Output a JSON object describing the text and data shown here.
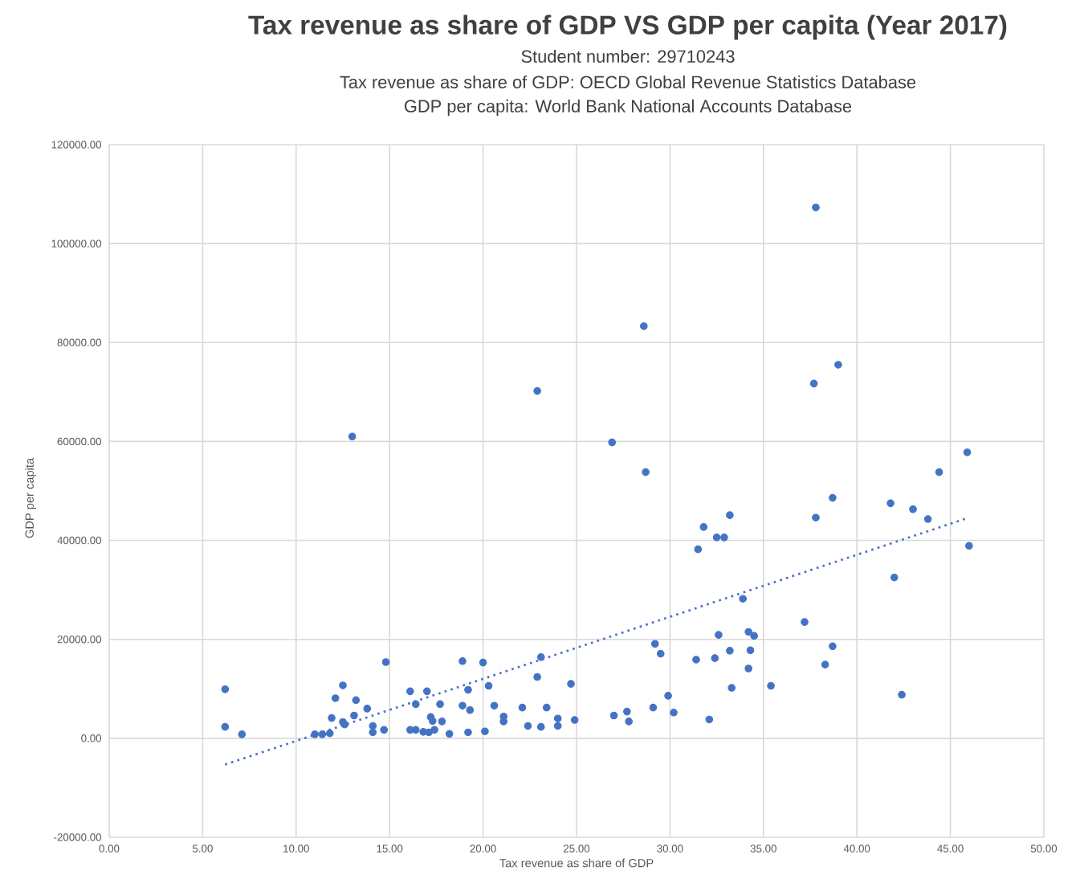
{
  "chart_data": {
    "type": "scatter",
    "title": "Tax revenue as share of GDP VS GDP per capita (Year 2017)",
    "subtitle": "Student number: 29710243",
    "annotations": [
      "Tax revenue as share of GDP: OECD Global Revenue Statistics Database",
      "GDP per capita: World Bank National Accounts Database"
    ],
    "xlabel": "Tax revenue as share of GDP",
    "ylabel": "GDP per capita",
    "xlim": [
      0,
      50
    ],
    "ylim": [
      -20000,
      120000
    ],
    "xticks": [
      {
        "value": 0,
        "label": "0.00"
      },
      {
        "value": 5,
        "label": "5.00"
      },
      {
        "value": 10,
        "label": "10.00"
      },
      {
        "value": 15,
        "label": "15.00"
      },
      {
        "value": 20,
        "label": "20.00"
      },
      {
        "value": 25,
        "label": "25.00"
      },
      {
        "value": 30,
        "label": "30.00"
      },
      {
        "value": 35,
        "label": "35.00"
      },
      {
        "value": 40,
        "label": "40.00"
      },
      {
        "value": 45,
        "label": "45.00"
      },
      {
        "value": 50,
        "label": "50.00"
      }
    ],
    "yticks": [
      {
        "value": -20000,
        "label": "-20000.00"
      },
      {
        "value": 0,
        "label": "0.00"
      },
      {
        "value": 20000,
        "label": "20000.00"
      },
      {
        "value": 40000,
        "label": "40000.00"
      },
      {
        "value": 60000,
        "label": "60000.00"
      },
      {
        "value": 80000,
        "label": "80000.00"
      },
      {
        "value": 100000,
        "label": "100000.00"
      },
      {
        "value": 120000,
        "label": "120000.00"
      }
    ],
    "grid": true,
    "marker": "circle",
    "series": [
      {
        "color": "#4472c4",
        "x": [
          6.2,
          6.2,
          7.1,
          11.0,
          11.4,
          11.8,
          11.9,
          12.1,
          12.5,
          12.5,
          12.6,
          13.2,
          13.1,
          13.8,
          14.1,
          14.1,
          14.7,
          14.8,
          16.1,
          16.1,
          16.4,
          16.4,
          16.8,
          17.0,
          17.1,
          17.2,
          17.3,
          17.4,
          17.7,
          17.8,
          18.2,
          18.9,
          19.2,
          18.9,
          19.3,
          19.2,
          20.0,
          20.1,
          20.3,
          20.6,
          21.1,
          21.1,
          22.1,
          22.4,
          22.9,
          23.1,
          23.1,
          23.4,
          24.0,
          24.0,
          24.7,
          24.9,
          27.0,
          27.7,
          27.8,
          29.1,
          29.2,
          29.5,
          29.9,
          30.2,
          31.4,
          32.1,
          32.4,
          32.6,
          33.2,
          33.3,
          33.9,
          34.2,
          34.5,
          34.3,
          34.2,
          35.4,
          37.2,
          37.8,
          38.7,
          38.3,
          38.7,
          41.8,
          42.0,
          42.4,
          43.0,
          43.8,
          44.4,
          45.9,
          46.0,
          31.5,
          31.8,
          32.5,
          32.9,
          33.2,
          26.9,
          28.7,
          28.6,
          22.9,
          37.7,
          39.0,
          13.0,
          37.8
        ],
        "values": [
          9900,
          2300,
          800,
          800,
          800,
          1000,
          4100,
          8100,
          10700,
          3300,
          2800,
          7700,
          4600,
          6000,
          2500,
          1200,
          1700,
          15400,
          1700,
          9500,
          1700,
          6900,
          1300,
          9500,
          1200,
          4300,
          3500,
          1700,
          6900,
          3400,
          900,
          15600,
          9800,
          6600,
          5700,
          1200,
          15300,
          1400,
          10600,
          6600,
          4400,
          3400,
          6200,
          2500,
          12400,
          16400,
          2300,
          6200,
          4000,
          2500,
          11000,
          3700,
          4600,
          5400,
          3400,
          6200,
          19100,
          17100,
          8600,
          5200,
          15900,
          3800,
          16200,
          20900,
          17700,
          10200,
          28200,
          21500,
          20700,
          17800,
          14100,
          10600,
          23500,
          44600,
          48600,
          14900,
          18600,
          47500,
          32500,
          8800,
          46300,
          44300,
          53800,
          57800,
          38900,
          38200,
          42700,
          40600,
          40600,
          45100,
          59800,
          53800,
          83300,
          70200,
          71700,
          75500,
          61000,
          107300
        ]
      },
      {
        "type": "line",
        "color": "#4472c4",
        "x": [
          6.2,
          45.9
        ],
        "values": [
          -5300,
          44500
        ],
        "line_style": "dotted",
        "marker": "none"
      }
    ]
  }
}
